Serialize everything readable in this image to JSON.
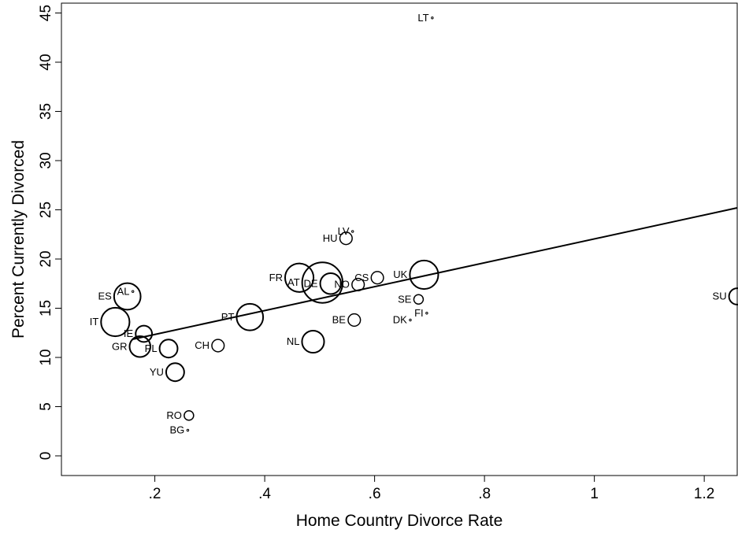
{
  "chart_data": {
    "type": "scatter",
    "xlabel": "Home Country Divorce Rate",
    "ylabel": "Percent Currently Divorced",
    "xlim": [
      0.03,
      1.26
    ],
    "ylim": [
      -2,
      46
    ],
    "x_ticks": [
      0.2,
      0.4,
      0.6,
      0.8,
      1,
      1.2
    ],
    "x_tick_labels": [
      ".2",
      ".4",
      ".6",
      ".8",
      "1",
      "1.2"
    ],
    "y_ticks": [
      0,
      5,
      10,
      15,
      20,
      25,
      30,
      35,
      40,
      45
    ],
    "y_tick_labels": [
      "0",
      "5",
      "10",
      "15",
      "20",
      "25",
      "30",
      "35",
      "40",
      "45"
    ],
    "marker_note": "marker size proportional to weight",
    "points": [
      {
        "label": "LT",
        "x": 0.705,
        "y": 44.5,
        "size": 0
      },
      {
        "label": "LV",
        "x": 0.56,
        "y": 22.8,
        "size": 0
      },
      {
        "label": "HU",
        "x": 0.548,
        "y": 22.1,
        "size": 2
      },
      {
        "label": "AT",
        "x": 0.505,
        "y": 17.6,
        "size": 30
      },
      {
        "label": "FR",
        "x": 0.463,
        "y": 18.1,
        "size": 14
      },
      {
        "label": "DE",
        "x": 0.52,
        "y": 17.5,
        "size": 7
      },
      {
        "label": "NO",
        "x": 0.57,
        "y": 17.4,
        "size": 2
      },
      {
        "label": "CS",
        "x": 0.605,
        "y": 18.1,
        "size": 2
      },
      {
        "label": "UK",
        "x": 0.69,
        "y": 18.4,
        "size": 14
      },
      {
        "label": "SE",
        "x": 0.68,
        "y": 15.9,
        "size": 1
      },
      {
        "label": "FI",
        "x": 0.695,
        "y": 14.5,
        "size": 0
      },
      {
        "label": "DK",
        "x": 0.665,
        "y": 13.8,
        "size": 0
      },
      {
        "label": "BE",
        "x": 0.563,
        "y": 13.8,
        "size": 2
      },
      {
        "label": "NL",
        "x": 0.488,
        "y": 11.6,
        "size": 8
      },
      {
        "label": "PT",
        "x": 0.373,
        "y": 14.1,
        "size": 12
      },
      {
        "label": "CH",
        "x": 0.315,
        "y": 11.2,
        "size": 2
      },
      {
        "label": "ES",
        "x": 0.15,
        "y": 16.2,
        "size": 12
      },
      {
        "label": "AL",
        "x": 0.16,
        "y": 16.7,
        "size": 0
      },
      {
        "label": "IT",
        "x": 0.128,
        "y": 13.6,
        "size": 14
      },
      {
        "label": "IE",
        "x": 0.18,
        "y": 12.4,
        "size": 4
      },
      {
        "label": "GR",
        "x": 0.173,
        "y": 11.1,
        "size": 7
      },
      {
        "label": "PL",
        "x": 0.225,
        "y": 10.9,
        "size": 5
      },
      {
        "label": "YU",
        "x": 0.237,
        "y": 8.5,
        "size": 5
      },
      {
        "label": "RO",
        "x": 0.262,
        "y": 4.1,
        "size": 1
      },
      {
        "label": "BG",
        "x": 0.26,
        "y": 2.6,
        "size": 0
      },
      {
        "label": "SU",
        "x": 1.26,
        "y": 16.2,
        "size": 4
      }
    ],
    "fit_line": {
      "x": [
        0.16,
        1.26
      ],
      "y": [
        11.85,
        25.2
      ]
    }
  }
}
